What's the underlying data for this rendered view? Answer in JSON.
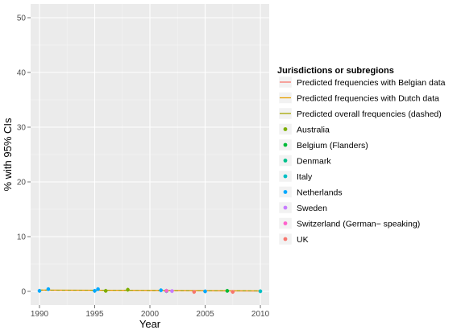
{
  "chart_data": {
    "type": "scatter",
    "xlabel": "Year",
    "ylabel": "% with 95% CIs",
    "xlim": [
      1989.2,
      2010.8
    ],
    "ylim": [
      -2.5,
      52.5
    ],
    "x_ticks": [
      1990,
      1995,
      2000,
      2005,
      2010
    ],
    "y_ticks": [
      0,
      10,
      20,
      30,
      40,
      50
    ],
    "x_tick_labels": [
      "1990",
      "1995",
      "2000",
      "2005",
      "2010"
    ],
    "y_tick_labels": [
      "0",
      "10",
      "20",
      "30",
      "40",
      "50"
    ],
    "grid": true,
    "legend_position": "right",
    "legend_title": "Jurisdictions or subregions",
    "lines": [
      {
        "name": "Predicted frequencies with Belgian data",
        "color": "#F8766D",
        "dashed": false,
        "x": [
          1990,
          2010
        ],
        "y": [
          0.2,
          0.05
        ]
      },
      {
        "name": "Predicted frequencies with Dutch data",
        "color": "#E69F00",
        "dashed": false,
        "x": [
          1990,
          2010
        ],
        "y": [
          0.25,
          0.1
        ]
      },
      {
        "name": "Predicted overall frequencies (dashed)",
        "color": "#A3A500",
        "dashed": true,
        "x": [
          1990,
          2010
        ],
        "y": [
          0.22,
          0.08
        ]
      }
    ],
    "series": [
      {
        "name": "Australia",
        "color": "#7CAE00",
        "points": [
          {
            "x": 1996.0,
            "y": 0.1
          },
          {
            "x": 1998.0,
            "y": 0.3
          }
        ]
      },
      {
        "name": "Belgium (Flanders)",
        "color": "#00BA38",
        "points": [
          {
            "x": 2001.5,
            "y": 0.1
          },
          {
            "x": 2007.0,
            "y": 0.1
          }
        ]
      },
      {
        "name": "Denmark",
        "color": "#00C08B",
        "points": [
          {
            "x": 2001.5,
            "y": 0.05
          }
        ]
      },
      {
        "name": "Italy",
        "color": "#00BFC4",
        "points": [
          {
            "x": 2001.5,
            "y": 0.05
          },
          {
            "x": 2010.0,
            "y": 0.02
          }
        ]
      },
      {
        "name": "Netherlands",
        "color": "#00A9FF",
        "points": [
          {
            "x": 1990.0,
            "y": 0.1
          },
          {
            "x": 1990.8,
            "y": 0.4
          },
          {
            "x": 1995.0,
            "y": 0.1
          },
          {
            "x": 1995.3,
            "y": 0.4
          },
          {
            "x": 2001.0,
            "y": 0.2
          },
          {
            "x": 2005.0,
            "y": 0.0
          }
        ]
      },
      {
        "name": "Sweden",
        "color": "#C77CFF",
        "points": [
          {
            "x": 2002.0,
            "y": 0.05
          }
        ]
      },
      {
        "name": "Switzerland (German− speaking)",
        "color": "#FF61CC",
        "points": [
          {
            "x": 2001.5,
            "y": 0.1
          }
        ]
      },
      {
        "name": "UK",
        "color": "#F8766D",
        "points": [
          {
            "x": 2004.0,
            "y": -0.1
          },
          {
            "x": 2007.5,
            "y": -0.1
          }
        ]
      }
    ]
  }
}
